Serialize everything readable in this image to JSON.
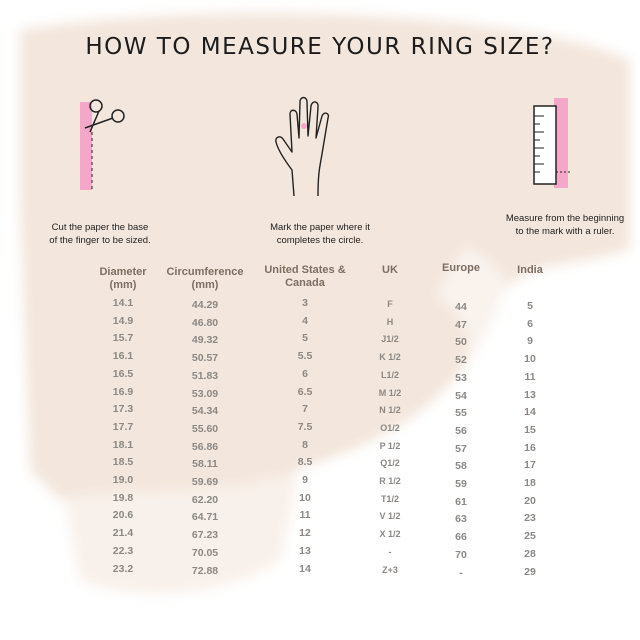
{
  "title": "HOW TO MEASURE YOUR RING SIZE?",
  "steps": [
    {
      "icon": "scissors-paper-icon",
      "caption_line1": "Cut the paper the base",
      "caption_line2": "of the finger to be sized."
    },
    {
      "icon": "hand-icon",
      "caption_line1": "Mark the paper where it",
      "caption_line2": "completes the circle."
    },
    {
      "icon": "ruler-icon",
      "caption_line1": "Measure from the beginning",
      "caption_line2": "to the mark with a ruler."
    }
  ],
  "colors": {
    "accent_pink": "#f4a7c8",
    "header_text": "#7d6e62",
    "value_text": "#8b8885",
    "background_brush": "#f3e6dc"
  },
  "table": {
    "headers": [
      {
        "line1": "Diameter",
        "line2": "(mm)"
      },
      {
        "line1": "Circumference",
        "line2": "(mm)"
      },
      {
        "line1": "United States &",
        "line2": "Canada"
      },
      {
        "line1": "UK",
        "line2": ""
      },
      {
        "line1": "Europe",
        "line2": ""
      },
      {
        "line1": "India",
        "line2": ""
      }
    ],
    "rows": [
      [
        "14.1",
        "44.29",
        "3",
        "F",
        "44",
        "5"
      ],
      [
        "14.9",
        "46.80",
        "4",
        "H",
        "47",
        "6"
      ],
      [
        "15.7",
        "49.32",
        "5",
        "J1/2",
        "50",
        "9"
      ],
      [
        "16.1",
        "50.57",
        "5.5",
        "K 1/2",
        "52",
        "10"
      ],
      [
        "16.5",
        "51.83",
        "6",
        "L1/2",
        "53",
        "11"
      ],
      [
        "16.9",
        "53.09",
        "6.5",
        "M 1/2",
        "54",
        "13"
      ],
      [
        "17.3",
        "54.34",
        "7",
        "N 1/2",
        "55",
        "14"
      ],
      [
        "17.7",
        "55.60",
        "7.5",
        "O1/2",
        "56",
        "15"
      ],
      [
        "18.1",
        "56.86",
        "8",
        "P 1/2",
        "57",
        "16"
      ],
      [
        "18.5",
        "58.11",
        "8.5",
        "Q1/2",
        "58",
        "17"
      ],
      [
        "19.0",
        "59.69",
        "9",
        "R 1/2",
        "59",
        "18"
      ],
      [
        "19.8",
        "62.20",
        "10",
        "T1/2",
        "61",
        "20"
      ],
      [
        "20.6",
        "64.71",
        "11",
        "V 1/2",
        "63",
        "23"
      ],
      [
        "21.4",
        "67.23",
        "12",
        "X 1/2",
        "66",
        "25"
      ],
      [
        "22.3",
        "70.05",
        "13",
        "-",
        "70",
        "28"
      ],
      [
        "23.2",
        "72.88",
        "14",
        "Z+3",
        "-",
        "29"
      ]
    ]
  }
}
